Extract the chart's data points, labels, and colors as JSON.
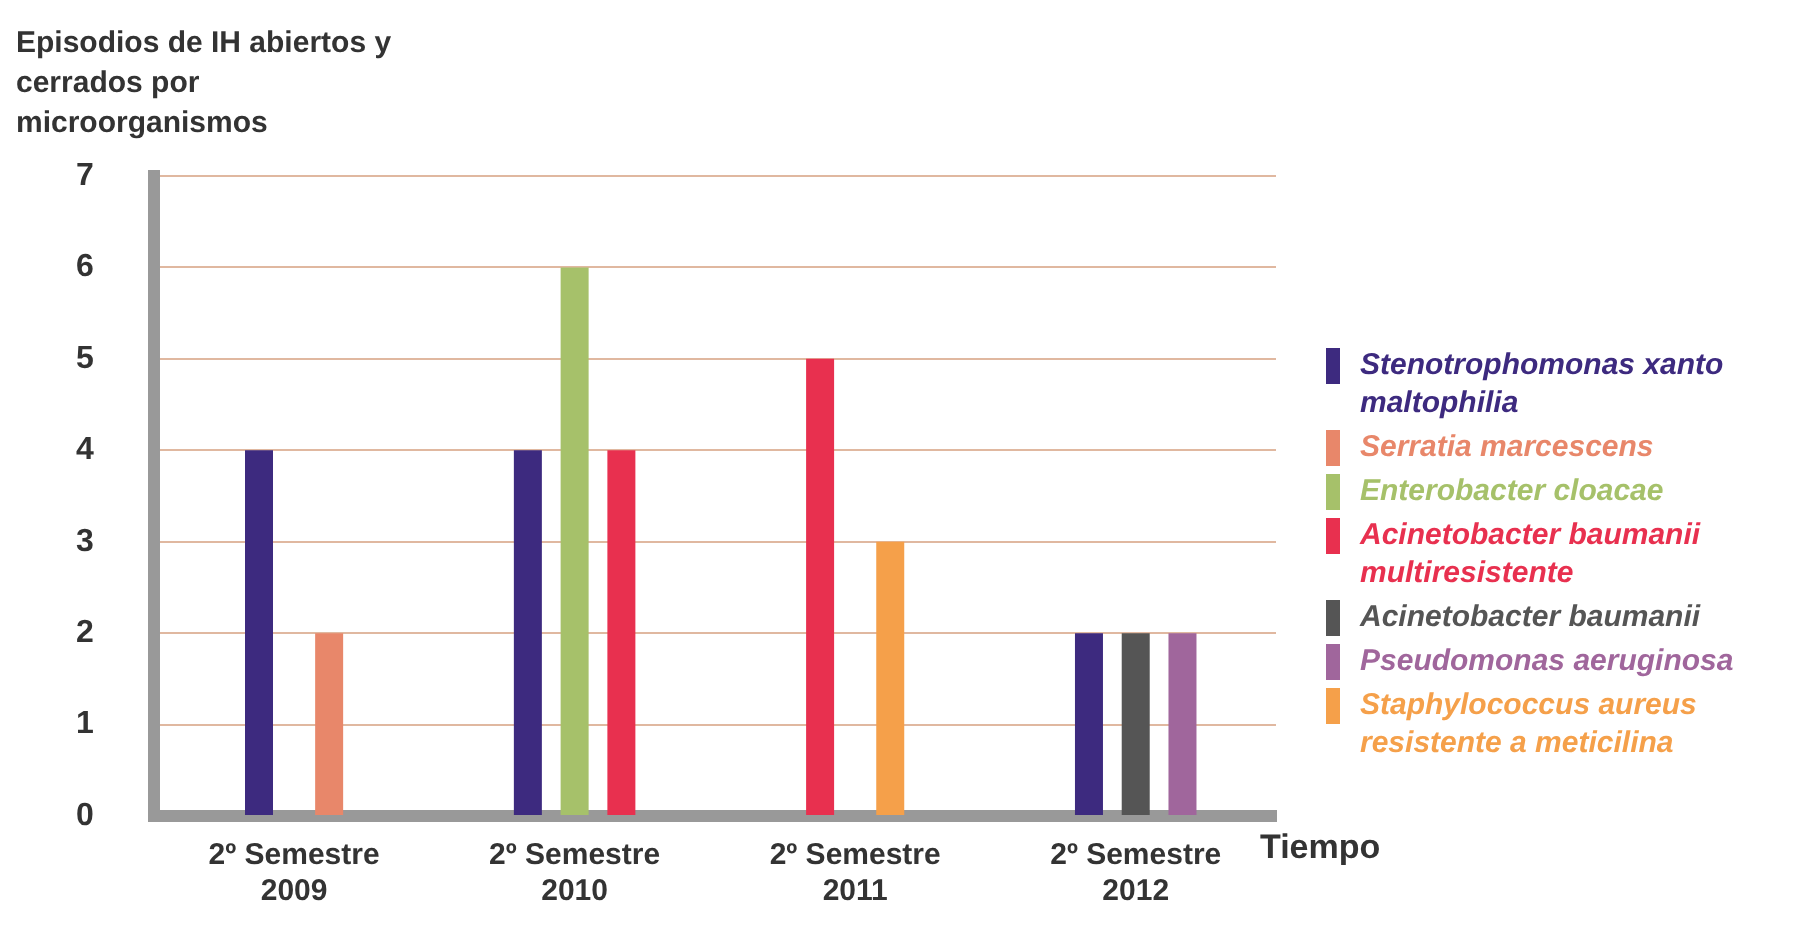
{
  "chart_data": {
    "type": "bar",
    "ylabel": "Episodios de IH abiertos y cerrados por microorganismos",
    "xlabel": "Tiempo",
    "categories": [
      "2º Semestre 2009",
      "2º Semestre 2010",
      "2º Semestre 2011",
      "2º Semestre 2012"
    ],
    "ylim": [
      0,
      7
    ],
    "yticks": [
      0,
      1,
      2,
      3,
      4,
      5,
      6,
      7
    ],
    "grid": "y",
    "legend": "right",
    "series": [
      {
        "name": "Stenotrophomonas xanto maltophilia",
        "color": "#3d2a7f",
        "values": [
          4,
          4,
          null,
          2
        ]
      },
      {
        "name": "Serratia marcescens",
        "color": "#e8876a",
        "values": [
          2,
          null,
          null,
          null
        ]
      },
      {
        "name": "Enterobacter cloacae",
        "color": "#a6c16a",
        "values": [
          null,
          6,
          null,
          null
        ]
      },
      {
        "name": "Acinetobacter baumanii multiresistente",
        "color": "#e8304f",
        "values": [
          null,
          4,
          5,
          null
        ]
      },
      {
        "name": "Acinetobacter baumanii",
        "color": "#555555",
        "values": [
          null,
          null,
          null,
          2
        ]
      },
      {
        "name": "Pseudomonas aeruginosa",
        "color": "#a0669c",
        "values": [
          null,
          null,
          null,
          2
        ]
      },
      {
        "name": "Staphylococcus aureus resistente a meticilina",
        "color": "#f5a04a",
        "values": [
          null,
          null,
          3,
          null
        ]
      }
    ]
  }
}
